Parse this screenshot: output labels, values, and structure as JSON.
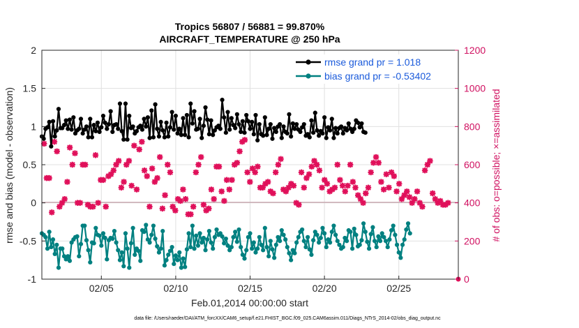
{
  "chart_data": {
    "type": "line",
    "title_line1": "Tropics 56807 / 56881 = 99.870%",
    "title_line2": "AIRCRAFT_TEMPERATURE @ 250 hPa",
    "xlabel": "Feb.01,2014 00:00:00 start",
    "ylabel_left": "rmse and bias (model - observation)",
    "ylabel_right": "# of obs: o=possible; ×=assimilated",
    "footer": "data file: /Users/raeder/DAI/ATM_forcXX/CAM6_setup/f.e21.FHIST_BGC.f09_025.CAM6assim.011/Diags_NTrS_2014-02/obs_diag_output.nc",
    "x_unit": "day of February 2014",
    "xlim": [
      1.0,
      29.0
    ],
    "xticks": [
      5,
      10,
      15,
      20,
      25
    ],
    "xtick_labels": [
      "02/05",
      "02/10",
      "02/15",
      "02/20",
      "02/25"
    ],
    "ylim_left": [
      -1,
      2
    ],
    "yticks_left": [
      -1,
      -0.5,
      0,
      0.5,
      1,
      1.5,
      2
    ],
    "ytick_labels_left": [
      "-1",
      "-0.5",
      "0",
      "0.5",
      "1",
      "1.5",
      "2"
    ],
    "ylim_right": [
      0,
      1200
    ],
    "yticks_right": [
      0,
      200,
      400,
      600,
      800,
      1000,
      1200
    ],
    "ytick_labels_right": [
      "0",
      "200",
      "400",
      "600",
      "800",
      "1000",
      "1200"
    ],
    "grid": true,
    "legend_position": "top-right",
    "colors": {
      "rmse": "#000000",
      "bias": "#008080",
      "obs": "#e0105a",
      "right_axis": "#d01060",
      "legend_text": "#1a5adb",
      "zero_line": "#c8a8b0",
      "grid": "#e0e0e0"
    },
    "series": [
      {
        "name": "rmse grand pr = 1.018",
        "marker": "filled-circle",
        "values": [
          0.87,
          0.84,
          0.97,
          0.99,
          1.06,
          0.74,
          1.07,
          0.87,
          0.95,
          1.23,
          0.98,
          0.98,
          1.02,
          1.08,
          0.97,
          1.09,
          0.96,
          1.12,
          0.91,
          0.95,
          0.97,
          1.1,
          0.91,
          0.96,
          1.0,
          0.86,
          1.1,
          0.86,
          1.02,
          0.94,
          1.05,
          0.93,
          0.99,
          1.14,
          1.05,
          0.97,
          1.03,
          1.2,
          0.93,
          1.02,
          1.03,
          0.97,
          1.3,
          0.94,
          0.83,
          1.3,
          0.83,
          1.14,
          0.98,
          1.0,
          0.91,
          0.94,
          0.99,
          1.01,
          0.96,
          1.1,
          1.0,
          1.12,
          0.85,
          1.21,
          0.86,
          1.29,
          0.97,
          0.87,
          1.06,
          0.95,
          0.86,
          1.05,
          0.87,
          0.99,
          1.19,
          0.96,
          1.14,
          0.91,
          0.97,
          0.89,
          1.11,
          0.89,
          1.15,
          0.86,
          1.3,
          1.04,
          1.2,
          0.96,
          0.97,
          1.1,
          0.85,
          1.01,
          1.25,
          1.09,
          0.9,
          1.08,
          0.89,
          0.95,
          0.99,
          1.01,
          0.97,
          1.35,
          1.12,
          0.92,
          1.19,
          0.96,
          1.11,
          1.02,
          0.98,
          1.16,
          1.03,
          0.93,
          1.07,
          0.92,
          1.15,
          1.07,
          0.97,
          1.06,
          0.9,
          1.15,
          0.82,
          1.03,
          0.9,
          0.88,
          1.12,
          0.89,
          0.97,
          1.03,
          0.84,
          0.98,
          0.93,
          1.0,
          1.03,
          0.85,
          1.0,
          0.93,
          0.91,
          1.16,
          0.87,
          1.04,
          0.97,
          1.03,
          0.96,
          0.93,
          0.99,
          1.03,
          0.88,
          0.9,
          0.86,
          1.08,
          0.92,
          1.18,
          0.95,
          0.88,
          0.94,
          0.91,
          1.12,
          0.85,
          0.99,
          0.95,
          1.1,
          0.85,
          0.98,
          0.91,
          0.98,
          1.0,
          0.91,
          0.98,
          0.95,
          1.04,
          0.97,
          0.93,
          0.97,
          1.08,
          1.05,
          0.99,
          1.04,
          0.93,
          0.92
        ],
        "x_start": 1.0,
        "x_step": 0.125
      },
      {
        "name": "bias grand pr = -0.53402",
        "marker": "filled-circle",
        "values": [
          -0.4,
          -0.42,
          -0.45,
          -0.6,
          -0.38,
          -0.58,
          -0.48,
          -0.67,
          -0.55,
          -0.85,
          -0.6,
          -0.6,
          -0.7,
          -0.74,
          -0.7,
          -0.76,
          -0.52,
          -0.48,
          -0.45,
          -0.44,
          -0.7,
          -0.54,
          -0.3,
          -0.3,
          -0.49,
          -0.62,
          -0.78,
          -0.52,
          -0.53,
          -0.33,
          -0.42,
          -0.43,
          -0.56,
          -0.4,
          -0.46,
          -0.74,
          -0.49,
          -0.46,
          -0.47,
          -0.37,
          -0.52,
          -0.62,
          -0.75,
          -0.65,
          -0.83,
          -0.4,
          -0.6,
          -0.85,
          -0.53,
          -0.33,
          -0.68,
          -0.6,
          -0.63,
          -0.76,
          -0.36,
          -0.38,
          -0.29,
          -0.48,
          -0.52,
          -0.42,
          -0.3,
          -0.47,
          -0.57,
          -0.65,
          -0.6,
          -0.37,
          -0.82,
          -0.75,
          -0.68,
          -0.63,
          -0.58,
          -0.8,
          -0.69,
          -0.75,
          -0.65,
          -0.85,
          -0.73,
          -0.84,
          -0.61,
          -0.4,
          -0.58,
          -0.3,
          -0.6,
          -0.43,
          -0.56,
          -0.4,
          -0.52,
          -0.46,
          -0.62,
          -0.48,
          -0.37,
          -0.52,
          -0.6,
          -0.45,
          -0.35,
          -0.42,
          -0.4,
          -0.44,
          -0.53,
          -0.47,
          -0.56,
          -0.62,
          -0.58,
          -0.45,
          -0.38,
          -0.51,
          -0.35,
          -0.58,
          -0.68,
          -0.73,
          -0.62,
          -0.45,
          -0.4,
          -0.6,
          -0.52,
          -0.65,
          -0.6,
          -0.45,
          -0.55,
          -0.62,
          -0.33,
          -0.58,
          -0.7,
          -0.5,
          -0.61,
          -0.72,
          -0.55,
          -0.45,
          -0.5,
          -0.36,
          -0.42,
          -0.48,
          -0.58,
          -0.66,
          -0.75,
          -0.62,
          -0.66,
          -0.52,
          -0.45,
          -0.38,
          -0.35,
          -0.5,
          -0.58,
          -0.45,
          -0.61,
          -0.68,
          -0.49,
          -0.38,
          -0.42,
          -0.52,
          -0.46,
          -0.33,
          -0.4,
          -0.58,
          -0.48,
          -0.52,
          -0.38,
          -0.3,
          -0.42,
          -0.5,
          -0.55,
          -0.6,
          -0.58,
          -0.46,
          -0.5,
          -0.36,
          -0.38,
          -0.6,
          -0.34,
          -0.42,
          -0.57,
          -0.55,
          -0.49,
          -0.27,
          -0.38,
          -0.51,
          -0.6,
          -0.41,
          -0.32,
          -0.5,
          -0.58,
          -0.44,
          -0.5,
          -0.4,
          -0.45,
          -0.5,
          -0.58,
          -0.48,
          -0.36,
          -0.3,
          -0.42,
          -0.55,
          -0.65,
          -0.72,
          -0.55,
          -0.48,
          -0.35,
          -0.27,
          -0.4
        ],
        "x_start": 1.0,
        "x_step": 0.125
      },
      {
        "name": "observations assimilated",
        "marker": "x",
        "axis": "right",
        "values": [
          710,
          530,
          530,
          350,
          720,
          670,
          380,
          400,
          420,
          510,
          690,
          600,
          660,
          400,
          400,
          600,
          600,
          390,
          380,
          380,
          650,
          400,
          520,
          520,
          380,
          540,
          550,
          570,
          600,
          620,
          480,
          510,
          600,
          620,
          490,
          700,
          470,
          680,
          720,
          570,
          540,
          380,
          580,
          510,
          530,
          640,
          370,
          440,
          600,
          560,
          380,
          360,
          420,
          410,
          470,
          420,
          340,
          340,
          380,
          560,
          600,
          640,
          390,
          360,
          370,
          470,
          420,
          590,
          590,
          460,
          410,
          520,
          470,
          520,
          600,
          610,
          670,
          720,
          730,
          560,
          510,
          580,
          560,
          590,
          480,
          480,
          500,
          510,
          460,
          450,
          560,
          600,
          630,
          470,
          460,
          480,
          500,
          490,
          400,
          390,
          560,
          480,
          530,
          550,
          590,
          620,
          600,
          570,
          480,
          520,
          500,
          460,
          470,
          480,
          600,
          520,
          490,
          460,
          490,
          600,
          510,
          480,
          440,
          420,
          400,
          450,
          480,
          560,
          610,
          640,
          610,
          510,
          470,
          550,
          480,
          560,
          540,
          460,
          500,
          420,
          440,
          460,
          430,
          400,
          420,
          460,
          400,
          380,
          570,
          600,
          620,
          450,
          420,
          400,
          410,
          390,
          390,
          400
        ],
        "x_start": 1.15,
        "x_step": 0.173
      }
    ]
  }
}
